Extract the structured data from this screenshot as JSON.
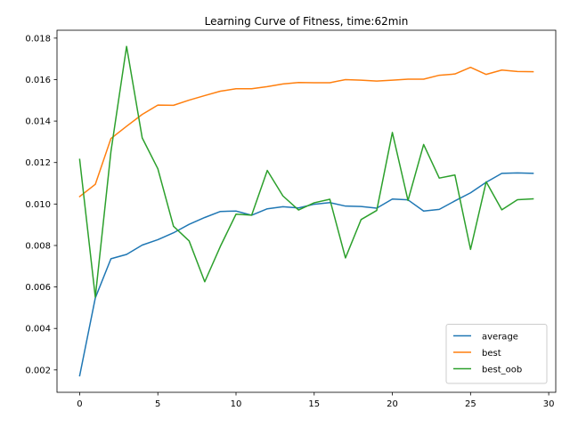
{
  "chart_data": {
    "type": "line",
    "title": "Learning Curve of Fitness, time:62min",
    "xlabel": "",
    "ylabel": "",
    "xlim": [
      -1.45,
      30.45
    ],
    "ylim": [
      0.00092,
      0.01838
    ],
    "xticks": [
      0,
      5,
      10,
      15,
      20,
      25,
      30
    ],
    "yticks": [
      0.002,
      0.004,
      0.006,
      0.008,
      0.01,
      0.012,
      0.014,
      0.016,
      0.018
    ],
    "ytick_labels": [
      "0.002",
      "0.004",
      "0.006",
      "0.008",
      "0.010",
      "0.012",
      "0.014",
      "0.016",
      "0.018"
    ],
    "grid": false,
    "legend_position": "lower-right",
    "x": [
      0,
      1,
      2,
      3,
      4,
      5,
      6,
      7,
      8,
      9,
      10,
      11,
      12,
      13,
      14,
      15,
      16,
      17,
      18,
      19,
      20,
      21,
      22,
      23,
      24,
      25,
      26,
      27,
      28,
      29
    ],
    "series": [
      {
        "name": "average",
        "color": "#1f77b4",
        "values": [
          0.00172,
          0.00547,
          0.00736,
          0.00757,
          0.00802,
          0.00828,
          0.00861,
          0.00902,
          0.00935,
          0.00964,
          0.00966,
          0.00946,
          0.00977,
          0.00987,
          0.00981,
          0.00999,
          0.01007,
          0.0099,
          0.00988,
          0.0098,
          0.01024,
          0.0102,
          0.00966,
          0.00974,
          0.01015,
          0.01054,
          0.01105,
          0.01148,
          0.0115,
          0.01148
        ]
      },
      {
        "name": "best",
        "color": "#ff7f0e",
        "values": [
          0.01036,
          0.01095,
          0.01316,
          0.01375,
          0.01432,
          0.01477,
          0.01476,
          0.01501,
          0.01523,
          0.01544,
          0.01556,
          0.01556,
          0.01566,
          0.01579,
          0.01586,
          0.01585,
          0.01585,
          0.016,
          0.01597,
          0.01593,
          0.01597,
          0.01602,
          0.01602,
          0.01621,
          0.01627,
          0.01659,
          0.01625,
          0.01646,
          0.01639,
          0.01638
        ]
      },
      {
        "name": "best_oob",
        "color": "#2ca02c",
        "values": [
          0.01215,
          0.00551,
          0.01253,
          0.0176,
          0.01319,
          0.0117,
          0.00893,
          0.00822,
          0.00625,
          0.00796,
          0.00951,
          0.00946,
          0.01162,
          0.01039,
          0.00971,
          0.01006,
          0.01023,
          0.0074,
          0.00925,
          0.00969,
          0.01345,
          0.01017,
          0.01287,
          0.01125,
          0.0114,
          0.00781,
          0.01107,
          0.00972,
          0.01021,
          0.01025
        ]
      }
    ]
  }
}
